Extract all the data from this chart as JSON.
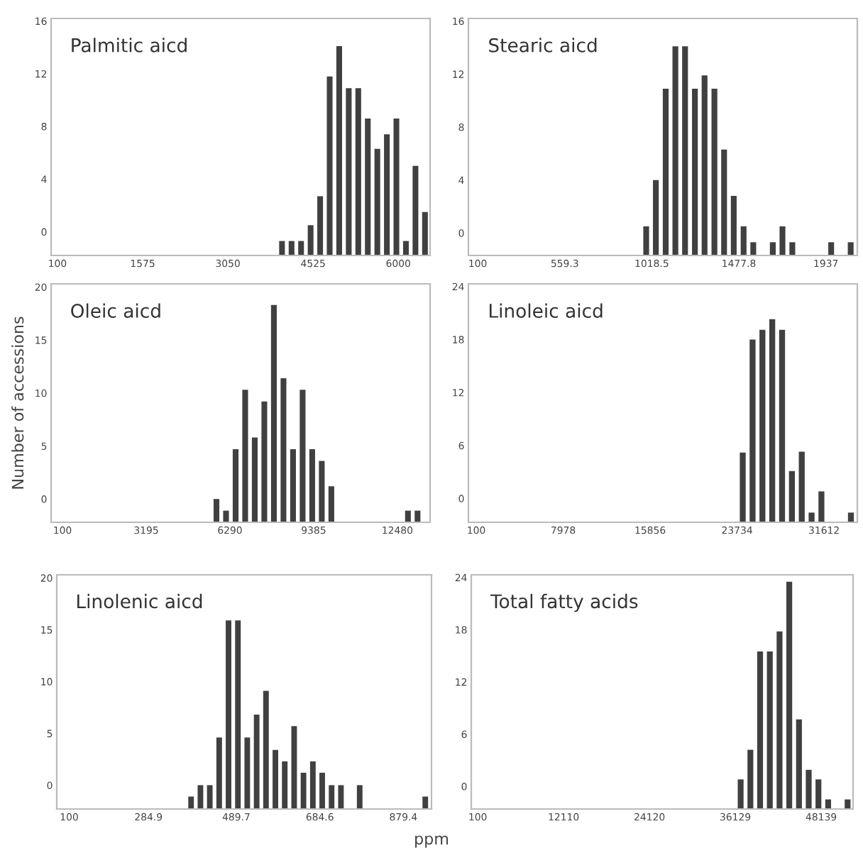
{
  "chart_data": [
    {
      "type": "bar",
      "color": "#404040",
      "annotations": [
        "Palmitic aicd"
      ],
      "x": [
        3987,
        4152,
        4317,
        4482,
        4647,
        4812,
        4977,
        5142,
        5307,
        5472,
        5637,
        5802,
        5967,
        6132,
        6297,
        6462
      ],
      "base": [
        -1.8,
        -1.8,
        -1.8,
        -1.8,
        -1.8,
        -1.8,
        -1.8,
        -1.8,
        -1.8,
        -1.8,
        -1.8,
        -1.8,
        -1.8,
        -1.8,
        -1.8,
        -1.8
      ],
      "values": [
        1.1,
        1.1,
        1.1,
        2.3,
        4.5,
        13.6,
        15.9,
        12.7,
        12.7,
        10.4,
        8.1,
        9.2,
        10.4,
        1.1,
        6.8,
        3.3
      ],
      "xlim": [
        -10,
        6550
      ],
      "xticks": [
        100,
        1575,
        3050,
        4525,
        6000
      ],
      "ylim": [
        -1.8,
        16.2
      ],
      "yticks": [
        0,
        4,
        8,
        12,
        16
      ]
    },
    {
      "type": "bar",
      "color": "#404040",
      "annotations": [
        "Stearic aicd"
      ],
      "x": [
        989,
        1040,
        1092,
        1143,
        1194,
        1246,
        1297,
        1349,
        1400,
        1451,
        1503,
        1554,
        1657,
        1708,
        1760,
        1965,
        2068
      ],
      "base": [
        -1.7,
        -1.7,
        -1.7,
        -1.7,
        -1.7,
        -1.7,
        -1.7,
        -1.7,
        -1.7,
        -1.7,
        -1.7,
        -1.7,
        -1.7,
        -1.7,
        -1.7,
        -1.7,
        -1.7
      ],
      "values": [
        2.2,
        5.7,
        12.6,
        15.8,
        15.8,
        12.6,
        13.6,
        12.6,
        8.0,
        4.5,
        2.2,
        1.0,
        1.0,
        2.2,
        1.0,
        1.0,
        1.0
      ],
      "xlim": [
        51,
        2103
      ],
      "xticks": [
        100,
        559.3,
        1018.5,
        1477.8,
        1937
      ],
      "ylim": [
        -1.7,
        16.2
      ],
      "yticks": [
        0,
        4,
        8,
        12,
        16
      ]
    },
    {
      "type": "bar",
      "color": "#404040",
      "annotations": [
        "Oleic aicd"
      ],
      "ylabel": "Number of accessions",
      "x": [
        5792,
        6146,
        6500,
        6854,
        7208,
        7562,
        7916,
        8270,
        8624,
        8978,
        9332,
        9686,
        10040,
        12872,
        13226
      ],
      "base": [
        -2.2,
        -2.2,
        -2.2,
        -2.2,
        -2.2,
        -2.2,
        -2.2,
        -2.2,
        -2.2,
        -2.2,
        -2.2,
        -2.2,
        -2.2,
        -2.2,
        -2.2
      ],
      "values": [
        2.2,
        1.1,
        6.9,
        12.5,
        8.0,
        11.4,
        20.5,
        13.6,
        6.9,
        12.5,
        6.9,
        5.8,
        3.4,
        1.1,
        1.1
      ],
      "xlim": [
        -321,
        13690
      ],
      "xticks": [
        100,
        3195,
        6290,
        9385,
        12480
      ],
      "ylim": [
        -2.2,
        20.3
      ],
      "yticks": [
        0,
        5,
        10,
        15,
        20
      ]
    },
    {
      "type": "bar",
      "color": "#404040",
      "annotations": [
        "Linoleic aicd"
      ],
      "x": [
        24245,
        25136,
        26027,
        26918,
        27809,
        28700,
        29591,
        30482,
        31373,
        34046
      ],
      "base": [
        -2.7,
        -2.7,
        -2.7,
        -2.7,
        -2.7,
        -2.7,
        -2.7,
        -2.7,
        -2.7,
        -2.7
      ],
      "values": [
        7.9,
        20.7,
        21.8,
        23.0,
        21.8,
        5.8,
        8.0,
        1.1,
        3.5,
        1.1
      ],
      "xlim": [
        -611,
        34626
      ],
      "xticks": [
        100,
        7978,
        15856,
        23734,
        31612
      ],
      "ylim": [
        -2.7,
        24.3
      ],
      "yticks": [
        0,
        6,
        12,
        18,
        24
      ]
    },
    {
      "type": "bar",
      "color": "#404040",
      "annotations": [
        "Linolenic aicd"
      ],
      "xlabel": "ppm",
      "x": [
        384.2,
        406.1,
        427.9,
        449.8,
        471.6,
        493.5,
        515.3,
        537.2,
        559.0,
        580.9,
        602.7,
        624.6,
        646.4,
        668.3,
        690.1,
        712.0,
        733.8,
        777.5,
        930.5
      ],
      "base": [
        -2.3,
        -2.3,
        -2.3,
        -2.3,
        -2.3,
        -2.3,
        -2.3,
        -2.3,
        -2.3,
        -2.3,
        -2.3,
        -2.3,
        -2.3,
        -2.3,
        -2.3,
        -2.3,
        -2.3,
        -2.3,
        -2.3
      ],
      "values": [
        1.2,
        2.3,
        2.3,
        6.9,
        18.2,
        18.2,
        6.9,
        9.1,
        11.4,
        5.7,
        4.6,
        8.0,
        3.5,
        4.6,
        3.5,
        2.3,
        2.3,
        2.3,
        1.2
      ],
      "xlim": [
        71,
        945
      ],
      "xticks": [
        100,
        284.9,
        489.7,
        684.6,
        879.4
      ],
      "ylim": [
        -2.3,
        20.3
      ],
      "yticks": [
        0,
        5,
        10,
        15,
        20
      ]
    },
    {
      "type": "bar",
      "color": "#404040",
      "annotations": [
        "Total fatty acids"
      ],
      "x": [
        36876,
        38236,
        39596,
        40956,
        42316,
        43676,
        45036,
        46396,
        47756,
        49116,
        51836
      ],
      "base": [
        -2.6,
        -2.6,
        -2.6,
        -2.6,
        -2.6,
        -2.6,
        -2.6,
        -2.6,
        -2.6,
        -2.6,
        -2.6
      ],
      "values": [
        3.4,
        6.8,
        18.1,
        18.1,
        20.4,
        26.1,
        10.3,
        4.5,
        3.4,
        1.1,
        1.1
      ],
      "xlim": [
        -811,
        52600
      ],
      "xticks": [
        100,
        12110,
        24120,
        36129,
        48139
      ],
      "ylim": [
        -2.6,
        24.3
      ],
      "yticks": [
        0,
        6,
        12,
        18,
        24
      ]
    }
  ]
}
